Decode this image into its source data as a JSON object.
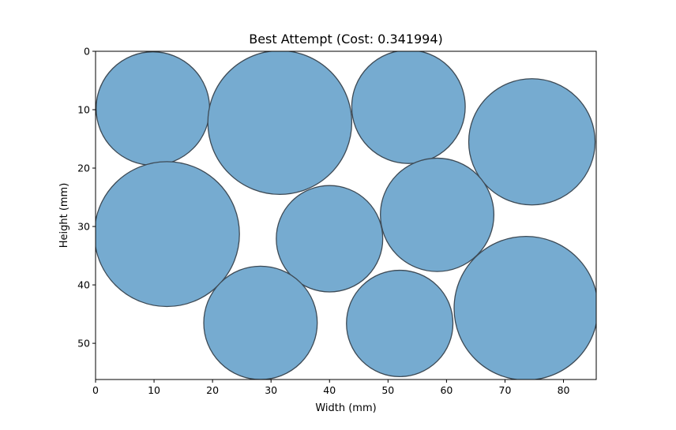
{
  "chart_data": {
    "type": "scatter",
    "shape": "circle",
    "title": "Best Attempt (Cost: 0.341994)",
    "xlabel": "Width (mm)",
    "ylabel": "Height (mm)",
    "xlim": [
      0,
      85.6
    ],
    "ylim": [
      56.2,
      0
    ],
    "y_inverted": true,
    "xticks": [
      0,
      10,
      20,
      30,
      40,
      50,
      60,
      70,
      80
    ],
    "yticks": [
      0,
      10,
      20,
      30,
      40,
      50
    ],
    "fill_color": "#76abd0",
    "edge_color": "#3d4a55",
    "circles": [
      {
        "x": 9.8,
        "y": 9.8,
        "r": 9.7
      },
      {
        "x": 31.5,
        "y": 12.2,
        "r": 12.3
      },
      {
        "x": 53.5,
        "y": 9.5,
        "r": 9.7
      },
      {
        "x": 74.6,
        "y": 15.5,
        "r": 10.8
      },
      {
        "x": 12.2,
        "y": 31.3,
        "r": 12.4
      },
      {
        "x": 40.0,
        "y": 32.1,
        "r": 9.1
      },
      {
        "x": 58.4,
        "y": 28.0,
        "r": 9.7
      },
      {
        "x": 28.2,
        "y": 46.5,
        "r": 9.7
      },
      {
        "x": 52.0,
        "y": 46.6,
        "r": 9.1
      },
      {
        "x": 73.6,
        "y": 44.0,
        "r": 12.3
      }
    ]
  }
}
